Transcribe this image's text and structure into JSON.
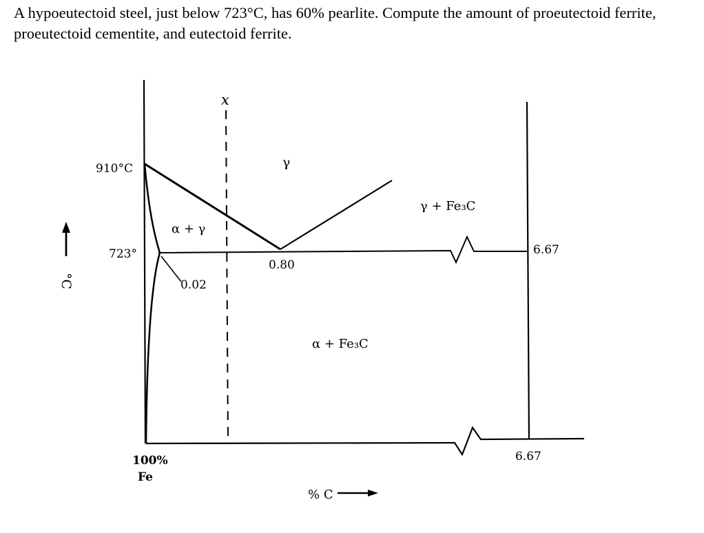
{
  "problem": {
    "text": "A hypoeutectoid steel, just below 723°C, has 60% pearlite. Compute the amount of proeutectoid ferrite, proeutectoid cementite, and eutectoid ferrite."
  },
  "diagram": {
    "temperature_labels": {
      "t910": "910°C",
      "t723": "723°"
    },
    "composition_labels": {
      "c002": "0.02",
      "c080": "0.80",
      "c667_upper": "6.67",
      "c667_lower": "6.67"
    },
    "phase_labels": {
      "gamma": "γ",
      "alpha_gamma": "α + γ",
      "gamma_fe3c": "γ + Fe₃C",
      "alpha_fe3c": "α + Fe₃C"
    },
    "line_labels": {
      "x_line": "x"
    },
    "axis_labels": {
      "y_axis": "°C",
      "x_axis": "% C",
      "origin_line1": "100%",
      "origin_line2": "Fe"
    }
  }
}
